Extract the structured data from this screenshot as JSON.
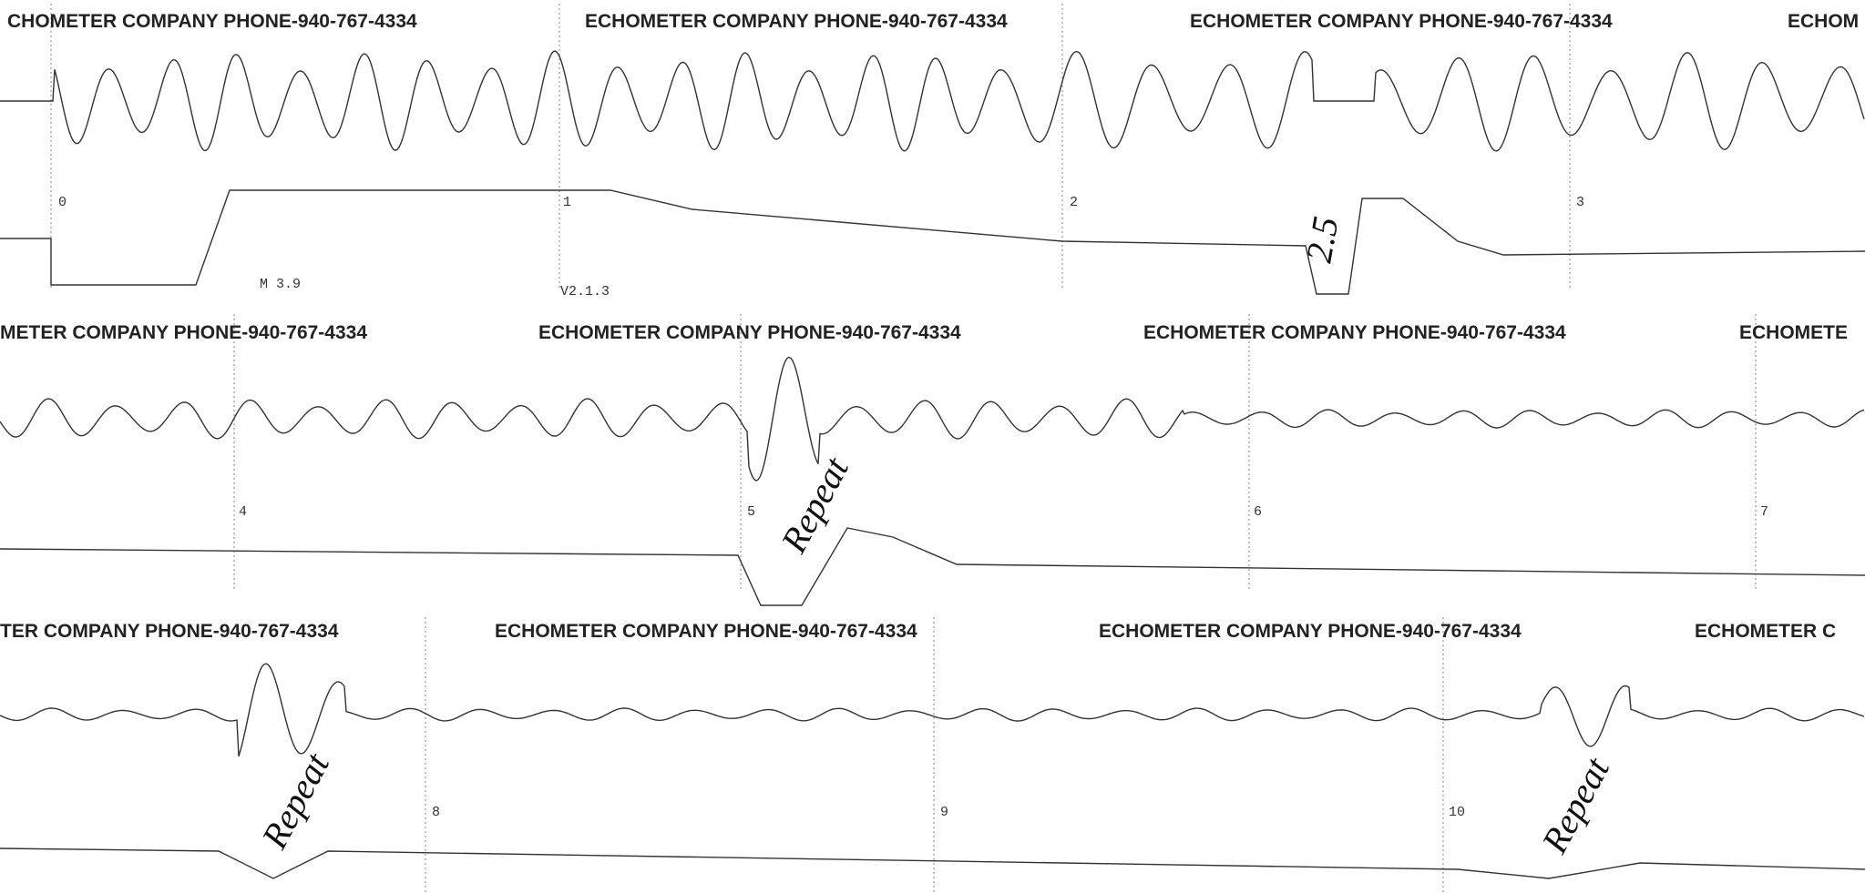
{
  "strips": [
    {
      "headers": [
        "CHOMETER COMPANY  PHONE-940-767-4334",
        "ECHOMETER COMPANY  PHONE-940-767-4334",
        "ECHOMETER COMPANY  PHONE-940-767-4334",
        "ECHOM"
      ],
      "markers": [
        "0",
        "1",
        "2",
        "3"
      ],
      "labels": [
        "M  3.9",
        "V2.1.3"
      ],
      "annotations": [
        "2.5"
      ]
    },
    {
      "headers": [
        "METER COMPANY  PHONE-940-767-4334",
        "ECHOMETER COMPANY  PHONE-940-767-4334",
        "ECHOMETER COMPANY  PHONE-940-767-4334",
        "ECHOMETE"
      ],
      "markers": [
        "4",
        "5",
        "6",
        "7"
      ],
      "annotations": [
        "Repeat"
      ]
    },
    {
      "headers": [
        "TER COMPANY  PHONE-940-767-4334",
        "ECHOMETER COMPANY  PHONE-940-767-4334",
        "ECHOMETER COMPANY  PHONE-940-767-4334",
        "ECHOMETER C"
      ],
      "markers": [
        "8",
        "9",
        "10"
      ],
      "annotations": [
        "Repeat",
        "Repeat"
      ]
    }
  ]
}
